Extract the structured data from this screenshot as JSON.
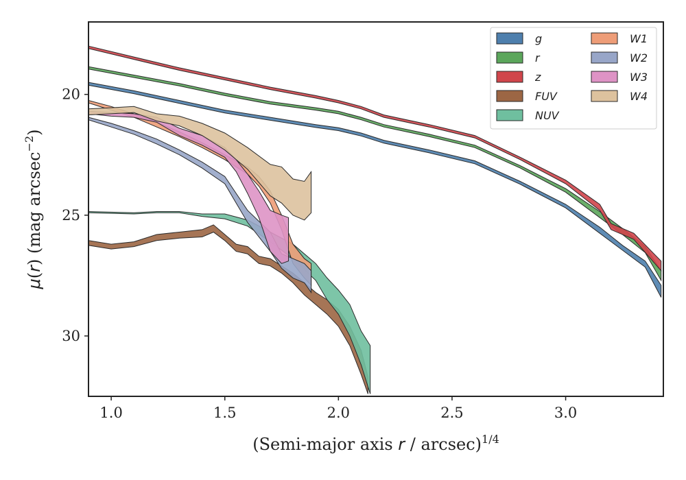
{
  "chart_data": {
    "type": "area",
    "xlabel": "(Semi-major axis r / arcsec)^{1/4}",
    "ylabel": "μ(r) (mag arcsec^{−2})",
    "xlim": [
      0.9,
      3.43
    ],
    "ylim": [
      32.5,
      17.0
    ],
    "y_inverted": true,
    "x_ticks": [
      "1.0",
      "1.5",
      "2.0",
      "2.5",
      "3.0"
    ],
    "y_ticks": [
      "20",
      "25",
      "30"
    ],
    "legend_position": "top-right",
    "legend_columns": 2,
    "colors": {
      "g": "#4e7fad",
      "r": "#5ba65b",
      "z": "#d0454b",
      "FUV": "#9c6644",
      "NUV": "#6fbf9f",
      "W1": "#ee9d78",
      "W2": "#98a6c8",
      "W3": "#de93c5",
      "W4": "#ddc29e"
    },
    "series": [
      {
        "name": "g",
        "points": [
          [
            0.9,
            19.5,
            19.62
          ],
          [
            1.1,
            19.85,
            19.97
          ],
          [
            1.3,
            20.25,
            20.37
          ],
          [
            1.5,
            20.65,
            20.77
          ],
          [
            1.7,
            20.95,
            21.07
          ],
          [
            1.9,
            21.25,
            21.37
          ],
          [
            2.0,
            21.38,
            21.5
          ],
          [
            2.1,
            21.6,
            21.72
          ],
          [
            2.2,
            21.9,
            22.02
          ],
          [
            2.4,
            22.3,
            22.42
          ],
          [
            2.6,
            22.75,
            22.87
          ],
          [
            2.8,
            23.6,
            23.72
          ],
          [
            3.0,
            24.55,
            24.7
          ],
          [
            3.15,
            25.5,
            25.75
          ],
          [
            3.25,
            26.25,
            26.45
          ],
          [
            3.35,
            26.9,
            27.15
          ],
          [
            3.42,
            27.9,
            28.4
          ]
        ]
      },
      {
        "name": "r",
        "points": [
          [
            0.9,
            18.85,
            18.95
          ],
          [
            1.1,
            19.2,
            19.3
          ],
          [
            1.3,
            19.55,
            19.65
          ],
          [
            1.5,
            19.95,
            20.05
          ],
          [
            1.7,
            20.3,
            20.4
          ],
          [
            1.9,
            20.55,
            20.65
          ],
          [
            2.0,
            20.7,
            20.8
          ],
          [
            2.1,
            20.95,
            21.05
          ],
          [
            2.2,
            21.25,
            21.35
          ],
          [
            2.4,
            21.65,
            21.75
          ],
          [
            2.6,
            22.1,
            22.2
          ],
          [
            2.8,
            22.95,
            23.05
          ],
          [
            3.0,
            23.9,
            24.05
          ],
          [
            3.15,
            24.85,
            25.1
          ],
          [
            3.25,
            25.55,
            25.8
          ],
          [
            3.35,
            26.3,
            26.55
          ],
          [
            3.42,
            27.3,
            27.7
          ]
        ]
      },
      {
        "name": "z",
        "points": [
          [
            0.9,
            18.0,
            18.1
          ],
          [
            1.1,
            18.45,
            18.55
          ],
          [
            1.3,
            18.9,
            19.0
          ],
          [
            1.5,
            19.3,
            19.4
          ],
          [
            1.7,
            19.7,
            19.8
          ],
          [
            1.9,
            20.05,
            20.15
          ],
          [
            2.0,
            20.25,
            20.35
          ],
          [
            2.1,
            20.5,
            20.6
          ],
          [
            2.2,
            20.85,
            20.95
          ],
          [
            2.4,
            21.25,
            21.35
          ],
          [
            2.6,
            21.7,
            21.8
          ],
          [
            2.8,
            22.6,
            22.7
          ],
          [
            3.0,
            23.55,
            23.7
          ],
          [
            3.15,
            24.55,
            24.8
          ],
          [
            3.2,
            25.35,
            25.6
          ],
          [
            3.3,
            25.75,
            26.0
          ],
          [
            3.42,
            26.9,
            27.3
          ]
        ]
      },
      {
        "name": "FUV",
        "points": [
          [
            0.9,
            26.05,
            26.25
          ],
          [
            1.0,
            26.2,
            26.4
          ],
          [
            1.1,
            26.1,
            26.3
          ],
          [
            1.2,
            25.8,
            26.05
          ],
          [
            1.3,
            25.7,
            25.95
          ],
          [
            1.4,
            25.6,
            25.9
          ],
          [
            1.45,
            25.4,
            25.7
          ],
          [
            1.5,
            25.8,
            26.05
          ],
          [
            1.55,
            26.2,
            26.5
          ],
          [
            1.6,
            26.3,
            26.6
          ],
          [
            1.65,
            26.7,
            27.0
          ],
          [
            1.7,
            26.8,
            27.1
          ],
          [
            1.75,
            27.1,
            27.4
          ],
          [
            1.8,
            27.4,
            27.8
          ],
          [
            1.85,
            27.8,
            28.3
          ],
          [
            1.9,
            28.2,
            28.7
          ],
          [
            1.95,
            28.5,
            29.1
          ],
          [
            2.0,
            28.9,
            29.6
          ],
          [
            2.05,
            29.6,
            30.4
          ],
          [
            2.1,
            30.6,
            31.6
          ],
          [
            2.13,
            31.7,
            32.4
          ]
        ]
      },
      {
        "name": "NUV",
        "points": [
          [
            0.9,
            24.85,
            24.9
          ],
          [
            1.1,
            24.9,
            24.95
          ],
          [
            1.2,
            24.85,
            24.9
          ],
          [
            1.3,
            24.85,
            24.9
          ],
          [
            1.4,
            24.95,
            25.05
          ],
          [
            1.5,
            24.95,
            25.15
          ],
          [
            1.6,
            25.2,
            25.45
          ],
          [
            1.7,
            25.7,
            26.1
          ],
          [
            1.8,
            26.2,
            26.8
          ],
          [
            1.9,
            27.0,
            27.7
          ],
          [
            1.95,
            27.6,
            28.5
          ],
          [
            2.0,
            28.1,
            29.1
          ],
          [
            2.05,
            28.7,
            30.0
          ],
          [
            2.1,
            29.8,
            31.2
          ],
          [
            2.14,
            30.4,
            32.4
          ]
        ]
      },
      {
        "name": "W1",
        "points": [
          [
            0.9,
            20.25,
            20.35
          ],
          [
            1.0,
            20.5,
            20.65
          ],
          [
            1.1,
            20.8,
            20.95
          ],
          [
            1.2,
            21.15,
            21.35
          ],
          [
            1.3,
            21.55,
            21.75
          ],
          [
            1.4,
            22.0,
            22.2
          ],
          [
            1.5,
            22.5,
            22.7
          ],
          [
            1.6,
            23.0,
            23.3
          ],
          [
            1.65,
            23.4,
            23.8
          ],
          [
            1.7,
            24.0,
            24.5
          ],
          [
            1.75,
            25.0,
            25.6
          ],
          [
            1.8,
            26.2,
            27.0
          ],
          [
            1.85,
            26.8,
            27.6
          ],
          [
            1.88,
            27.0,
            27.9
          ]
        ]
      },
      {
        "name": "W2",
        "points": [
          [
            0.9,
            20.95,
            21.05
          ],
          [
            1.0,
            21.2,
            21.35
          ],
          [
            1.1,
            21.5,
            21.65
          ],
          [
            1.2,
            21.85,
            22.05
          ],
          [
            1.3,
            22.3,
            22.5
          ],
          [
            1.4,
            22.8,
            23.05
          ],
          [
            1.5,
            23.4,
            23.7
          ],
          [
            1.55,
            24.1,
            24.5
          ],
          [
            1.6,
            24.8,
            25.3
          ],
          [
            1.7,
            25.7,
            26.5
          ],
          [
            1.75,
            26.6,
            27.2
          ],
          [
            1.8,
            26.8,
            27.6
          ],
          [
            1.85,
            27.0,
            27.8
          ],
          [
            1.88,
            27.3,
            28.2
          ]
        ]
      },
      {
        "name": "W3",
        "points": [
          [
            0.9,
            20.7,
            20.8
          ],
          [
            1.0,
            20.75,
            20.9
          ],
          [
            1.1,
            20.8,
            20.95
          ],
          [
            1.2,
            20.95,
            21.15
          ],
          [
            1.3,
            21.4,
            21.7
          ],
          [
            1.4,
            21.7,
            22.1
          ],
          [
            1.5,
            22.2,
            22.6
          ],
          [
            1.55,
            22.7,
            23.2
          ],
          [
            1.6,
            23.3,
            24.1
          ],
          [
            1.65,
            24.0,
            25.1
          ],
          [
            1.7,
            24.8,
            26.5
          ],
          [
            1.75,
            25.0,
            27.0
          ],
          [
            1.78,
            25.1,
            26.9
          ]
        ]
      },
      {
        "name": "W4",
        "points": [
          [
            0.9,
            20.6,
            20.85
          ],
          [
            1.0,
            20.55,
            20.8
          ],
          [
            1.1,
            20.5,
            20.75
          ],
          [
            1.2,
            20.8,
            21.1
          ],
          [
            1.3,
            20.9,
            21.3
          ],
          [
            1.4,
            21.2,
            21.7
          ],
          [
            1.5,
            21.6,
            22.3
          ],
          [
            1.6,
            22.2,
            23.1
          ],
          [
            1.7,
            22.9,
            24.2
          ],
          [
            1.75,
            23.0,
            24.5
          ],
          [
            1.8,
            23.5,
            25.0
          ],
          [
            1.85,
            23.6,
            25.2
          ],
          [
            1.88,
            23.2,
            24.9
          ]
        ]
      }
    ]
  }
}
